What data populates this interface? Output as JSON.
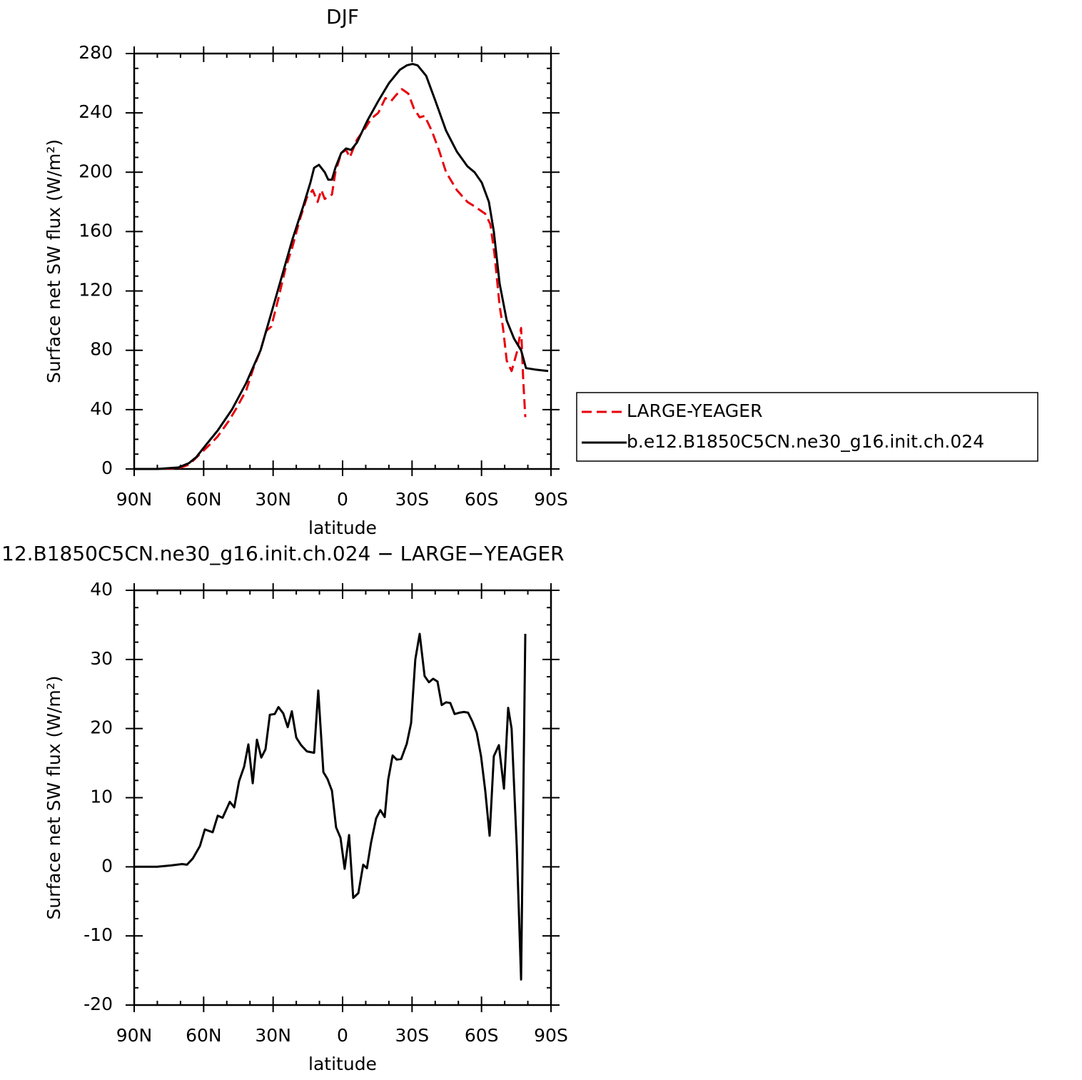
{
  "chart_data": [
    {
      "type": "line",
      "title": "DJF",
      "xlabel": "latitude",
      "ylabel": "Surface net SW flux (W/m²)",
      "xlim": [
        90,
        -90
      ],
      "xticks": [
        {
          "value": 90,
          "label": "90N"
        },
        {
          "value": 60,
          "label": "60N"
        },
        {
          "value": 30,
          "label": "30N"
        },
        0,
        {
          "value": -30,
          "label": "30S"
        },
        {
          "value": -60,
          "label": "60S"
        },
        {
          "value": -90,
          "label": "90S"
        }
      ],
      "ylim": [
        0,
        280
      ],
      "yticks": [
        0,
        40,
        80,
        120,
        160,
        200,
        240,
        280
      ],
      "legend": "right",
      "series": [
        {
          "name": "LARGE-YEAGER",
          "color": "#e8000b",
          "dashed": true,
          "x": [
            90.0,
            80.1,
            70.9,
            66.3,
            61.6,
            57.0,
            53.9,
            49.3,
            46.2,
            41.6,
            38.5,
            35.4,
            33.0,
            30.8,
            27.7,
            24.7,
            21.6,
            18.5,
            15.4,
            12.9,
            10.8,
            9.2,
            7.7,
            4.6,
            3.1,
            0.6,
            -1.5,
            -3.1,
            -6.2,
            -9.9,
            -12.3,
            -15.4,
            -18.5,
            -21.0,
            -23.1,
            -25.6,
            -28.4,
            -30.8,
            -33.3,
            -35.4,
            -38.5,
            -41.6,
            -44.7,
            -49.3,
            -53.9,
            -57.0,
            -61.6,
            -63.8,
            -65.6,
            -67.8,
            -69.3,
            -70.9,
            -73.0,
            -75.5,
            -77.1,
            -78.0,
            -78.9
          ],
          "values": [
            0,
            0,
            0.5,
            3,
            10,
            17,
            22,
            32,
            40,
            53,
            68,
            80,
            93,
            96,
            115,
            135,
            150,
            168,
            183,
            188,
            180,
            188,
            182,
            185,
            200,
            213,
            215,
            210,
            222,
            230,
            236,
            240,
            250,
            248,
            252,
            256,
            253,
            243,
            237,
            238,
            228,
            215,
            200,
            188,
            180,
            177,
            172,
            165,
            145,
            110,
            95,
            73,
            66,
            80,
            95,
            60,
            35
          ]
        },
        {
          "name": "b.e12.B1850C5CN.ne30_g16.init.ch.024",
          "color": "#000000",
          "dashed": false,
          "x": [
            90,
            80.1,
            70.9,
            66.3,
            63.2,
            58.6,
            53.9,
            47.8,
            41.6,
            35.4,
            30.8,
            26.2,
            21.6,
            17.0,
            13.9,
            12.3,
            10.2,
            7.7,
            6.2,
            4.6,
            3.1,
            0.6,
            -1.5,
            -3.7,
            -6.2,
            -10.8,
            -15.4,
            -20.0,
            -24.7,
            -27.7,
            -30.2,
            -32.4,
            -36.1,
            -40.1,
            -44.7,
            -49.3,
            -53.9,
            -57.0,
            -60.1,
            -63.2,
            -65.3,
            -67.8,
            -70.9,
            -74.0,
            -77.1,
            -79.2,
            -83.2,
            -88.8
          ],
          "values": [
            0,
            0,
            1,
            4,
            8,
            17,
            26,
            40,
            58,
            80,
            105,
            130,
            155,
            177,
            193,
            203,
            205,
            200,
            195,
            195,
            203,
            213,
            216,
            215,
            220,
            235,
            248,
            260,
            269,
            272,
            273,
            272,
            265,
            248,
            228,
            214,
            204,
            200,
            193,
            180,
            160,
            125,
            100,
            88,
            80,
            68,
            67,
            66
          ]
        }
      ]
    },
    {
      "type": "line",
      "title": "12.B1850C5CN.ne30_g16.init.ch.024 − LARGE−YEAGER",
      "xlabel": "latitude",
      "ylabel": "Surface net SW flux (W/m²)",
      "xlim": [
        90,
        -90
      ],
      "xticks": [
        {
          "value": 90,
          "label": "90N"
        },
        {
          "value": 60,
          "label": "60N"
        },
        {
          "value": 30,
          "label": "30N"
        },
        0,
        {
          "value": -30,
          "label": "30S"
        },
        {
          "value": -60,
          "label": "60S"
        },
        {
          "value": -90,
          "label": "90S"
        }
      ],
      "ylim": [
        -20,
        40
      ],
      "yticks": [
        -20,
        -10,
        0,
        10,
        20,
        30,
        40
      ],
      "series": [
        {
          "color": "#000000",
          "dashed": false,
          "x": [
            90.0,
            80.1,
            74.0,
            69.3,
            67.2,
            64.7,
            61.6,
            59.5,
            56.1,
            53.9,
            51.8,
            48.7,
            46.8,
            44.7,
            42.5,
            40.7,
            38.8,
            37.0,
            35.1,
            33.3,
            31.4,
            29.3,
            27.7,
            25.6,
            23.7,
            21.9,
            20.0,
            17.9,
            15.4,
            12.3,
            10.5,
            8.3,
            6.5,
            4.6,
            2.8,
            0.9,
            -0.9,
            -2.8,
            -4.6,
            -6.8,
            -8.9,
            -10.5,
            -12.3,
            -14.5,
            -16.3,
            -18.2,
            -19.7,
            -21.6,
            -23.4,
            -25.3,
            -27.7,
            -29.6,
            -31.4,
            -33.3,
            -35.4,
            -37.3,
            -39.1,
            -41.0,
            -42.8,
            -44.7,
            -46.5,
            -48.4,
            -50.5,
            -52.4,
            -54.2,
            -56.1,
            -57.9,
            -59.8,
            -61.6,
            -63.5,
            -65.3,
            -67.5,
            -69.7,
            -71.5,
            -73.0,
            -75.2,
            -77.1,
            -78.9
          ],
          "values": [
            0,
            0,
            0.2,
            0.4,
            0.3,
            1.2,
            3,
            5.4,
            5,
            7.4,
            7.1,
            9.4,
            8.6,
            12.4,
            14.5,
            17.7,
            12.1,
            18.4,
            15.8,
            17,
            22,
            22.1,
            23.1,
            22.2,
            20.2,
            22.5,
            18.7,
            17.6,
            16.7,
            16.5,
            25.5,
            13.7,
            12.7,
            11,
            5.7,
            4.2,
            -0.3,
            4.6,
            -4.5,
            -3.8,
            0.3,
            -0.2,
            3.5,
            7,
            8.2,
            7.2,
            12.6,
            16.1,
            15.5,
            15.6,
            17.8,
            20.8,
            30,
            33.7,
            27.6,
            26.7,
            27.2,
            26.8,
            23.4,
            23.8,
            23.7,
            22.1,
            22.3,
            22.4,
            22.3,
            21,
            19.4,
            16,
            11,
            4.5,
            16,
            17.6,
            11.3,
            23,
            20,
            3,
            -16.3,
            33.7
          ]
        }
      ]
    }
  ]
}
